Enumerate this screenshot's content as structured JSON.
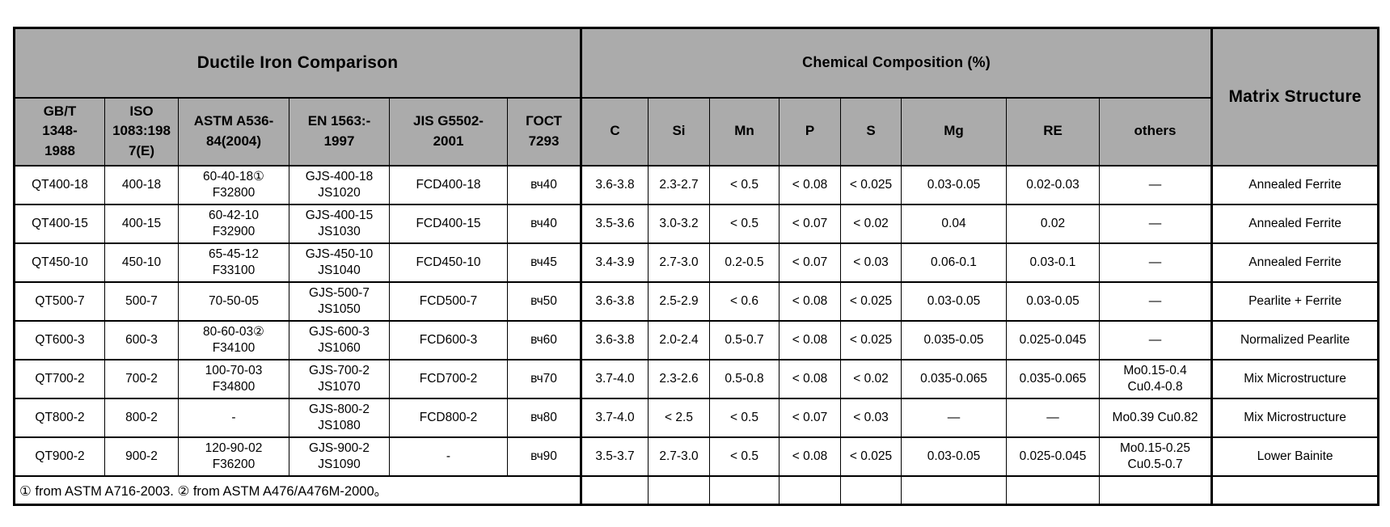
{
  "header": {
    "group_left": "Ductile Iron Comparison",
    "group_chem": "Chemical Composition (%)",
    "matrix": "Matrix Structure",
    "columns": [
      "GB/T\n1348-\n1988",
      "ISO\n1083:198\n7(E)",
      "ASTM A536-\n84(2004)",
      "EN 1563:-\n1997",
      "JIS G5502-\n2001",
      "ГОСТ\n7293",
      "C",
      "Si",
      "Mn",
      "P",
      "S",
      "Mg",
      "RE",
      "others"
    ]
  },
  "rows": [
    {
      "cells": [
        "QT400-18",
        "400-18",
        "60-40-18①\nF32800",
        "GJS-400-18\nJS1020",
        "FCD400-18",
        "вч40",
        "3.6-3.8",
        "2.3-2.7",
        "< 0.5",
        "< 0.08",
        "< 0.025",
        "0.03-0.05",
        "0.02-0.03",
        "—",
        "Annealed Ferrite"
      ]
    },
    {
      "cells": [
        "QT400-15",
        "400-15",
        "60-42-10\nF32900",
        "GJS-400-15\nJS1030",
        "FCD400-15",
        "вч40",
        "3.5-3.6",
        "3.0-3.2",
        "< 0.5",
        "< 0.07",
        "< 0.02",
        "0.04",
        "0.02",
        "—",
        "Annealed Ferrite"
      ]
    },
    {
      "cells": [
        "QT450-10",
        "450-10",
        "65-45-12\nF33100",
        "GJS-450-10\nJS1040",
        "FCD450-10",
        "вч45",
        "3.4-3.9",
        "2.7-3.0",
        "0.2-0.5",
        "< 0.07",
        "< 0.03",
        "0.06-0.1",
        "0.03-0.1",
        "—",
        "Annealed Ferrite"
      ]
    },
    {
      "cells": [
        "QT500-7",
        "500-7",
        "70-50-05",
        "GJS-500-7\nJS1050",
        "FCD500-7",
        "вч50",
        "3.6-3.8",
        "2.5-2.9",
        "< 0.6",
        "< 0.08",
        "< 0.025",
        "0.03-0.05",
        "0.03-0.05",
        "—",
        "Pearlite + Ferrite"
      ]
    },
    {
      "cells": [
        "QT600-3",
        "600-3",
        "80-60-03②\nF34100",
        "GJS-600-3\nJS1060",
        "FCD600-3",
        "вч60",
        "3.6-3.8",
        "2.0-2.4",
        "0.5-0.7",
        "< 0.08",
        "< 0.025",
        "0.035-0.05",
        "0.025-0.045",
        "—",
        "Normalized Pearlite"
      ]
    },
    {
      "cells": [
        "QT700-2",
        "700-2",
        "100-70-03\nF34800",
        "GJS-700-2\nJS1070",
        "FCD700-2",
        "вч70",
        "3.7-4.0",
        "2.3-2.6",
        "0.5-0.8",
        "< 0.08",
        "< 0.02",
        "0.035-0.065",
        "0.035-0.065",
        "Mo0.15-0.4\nCu0.4-0.8",
        "Mix Microstructure"
      ]
    },
    {
      "cells": [
        "QT800-2",
        "800-2",
        "-",
        "GJS-800-2\nJS1080",
        "FCD800-2",
        "вч80",
        "3.7-4.0",
        "< 2.5",
        "< 0.5",
        "< 0.07",
        "< 0.03",
        "—",
        "—",
        "Mo0.39 Cu0.82",
        "Mix Microstructure"
      ]
    },
    {
      "cells": [
        "QT900-2",
        "900-2",
        "120-90-02\nF36200",
        "GJS-900-2\nJS1090",
        "-",
        "вч90",
        "3.5-3.7",
        "2.7-3.0",
        "< 0.5",
        "< 0.08",
        "< 0.025",
        "0.03-0.05",
        "0.025-0.045",
        "Mo0.15-0.25\nCu0.5-0.7",
        "Lower Bainite"
      ]
    }
  ],
  "footnote": "① from ASTM A716-2003.  ② from ASTM A476/A476M-2000。",
  "colors": {
    "header_bg": "#ABABAB",
    "border": "#000000",
    "row_bg": "#FFFFFF",
    "text": "#000000"
  }
}
